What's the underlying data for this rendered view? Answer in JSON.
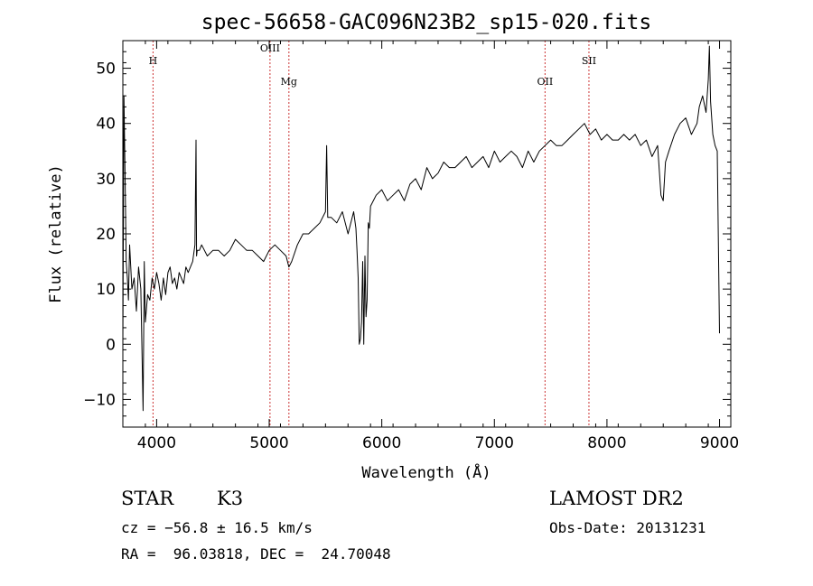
{
  "chart_data": {
    "type": "line",
    "title": "spec-56658-GAC096N23B2_sp15-020.fits",
    "xlabel": "Wavelength (Å)",
    "ylabel": "Flux (relative)",
    "xlim": [
      3700,
      9100
    ],
    "ylim": [
      -15,
      55
    ],
    "xticks": [
      4000,
      5000,
      6000,
      7000,
      8000,
      9000
    ],
    "yticks": [
      -10,
      0,
      10,
      20,
      30,
      40,
      50
    ],
    "grid": false,
    "line_color": "#000000",
    "marker_color": "#cc3333",
    "spectral_lines": [
      {
        "label": "H",
        "x": 3968
      },
      {
        "label": "OIII",
        "x": 5007
      },
      {
        "label": "Mg",
        "x": 5175
      },
      {
        "label": "OII",
        "x": 7450
      },
      {
        "label": "SII",
        "x": 7840
      }
    ],
    "series": [
      {
        "x": [
          3700,
          3710,
          3720,
          3730,
          3740,
          3750,
          3760,
          3780,
          3800,
          3820,
          3840,
          3860,
          3880,
          3890,
          3900,
          3920,
          3940,
          3960,
          3980,
          4000,
          4020,
          4040,
          4060,
          4080,
          4100,
          4120,
          4140,
          4160,
          4180,
          4200,
          4220,
          4240,
          4260,
          4280,
          4300,
          4320,
          4340,
          4350,
          4355,
          4360,
          4380,
          4400,
          4450,
          4500,
          4550,
          4600,
          4650,
          4700,
          4750,
          4800,
          4850,
          4900,
          4950,
          5000,
          5050,
          5100,
          5150,
          5175,
          5200,
          5250,
          5300,
          5350,
          5400,
          5450,
          5500,
          5510,
          5520,
          5550,
          5600,
          5650,
          5700,
          5750,
          5770,
          5780,
          5790,
          5800,
          5810,
          5820,
          5830,
          5840,
          5850,
          5860,
          5870,
          5880,
          5890,
          5900,
          5950,
          6000,
          6050,
          6100,
          6150,
          6200,
          6250,
          6300,
          6350,
          6400,
          6450,
          6500,
          6550,
          6600,
          6650,
          6700,
          6750,
          6800,
          6850,
          6900,
          6950,
          7000,
          7050,
          7100,
          7150,
          7200,
          7250,
          7300,
          7350,
          7400,
          7450,
          7500,
          7550,
          7600,
          7650,
          7700,
          7750,
          7800,
          7850,
          7900,
          7950,
          8000,
          8050,
          8100,
          8150,
          8200,
          8250,
          8300,
          8350,
          8400,
          8450,
          8480,
          8500,
          8520,
          8550,
          8600,
          8650,
          8700,
          8750,
          8800,
          8820,
          8850,
          8880,
          8900,
          8910,
          8920,
          8940,
          8960,
          8980,
          9000
        ],
        "y": [
          0,
          45,
          30,
          15,
          12,
          8,
          18,
          10,
          12,
          6,
          14,
          10,
          -12,
          15,
          4,
          9,
          8,
          12,
          10,
          13,
          11,
          8,
          12,
          9,
          13,
          14,
          11,
          12,
          10,
          13,
          12,
          11,
          14,
          13,
          14,
          15,
          18,
          37,
          16,
          17,
          17,
          18,
          16,
          17,
          17,
          16,
          17,
          19,
          18,
          17,
          17,
          16,
          15,
          17,
          18,
          17,
          16,
          14,
          15,
          18,
          20,
          20,
          21,
          22,
          24,
          36,
          23,
          23,
          22,
          24,
          20,
          24,
          21,
          17,
          12,
          0,
          1,
          4,
          15,
          0,
          16,
          5,
          8,
          22,
          21,
          25,
          27,
          28,
          26,
          27,
          28,
          26,
          29,
          30,
          28,
          32,
          30,
          31,
          33,
          32,
          32,
          33,
          34,
          32,
          33,
          34,
          32,
          35,
          33,
          34,
          35,
          34,
          32,
          35,
          33,
          35,
          36,
          37,
          36,
          36,
          37,
          38,
          39,
          40,
          38,
          39,
          37,
          38,
          37,
          37,
          38,
          37,
          38,
          36,
          37,
          34,
          36,
          27,
          26,
          33,
          35,
          38,
          40,
          41,
          38,
          40,
          43,
          45,
          42,
          48,
          54,
          44,
          38,
          36,
          35,
          2
        ]
      }
    ]
  },
  "info": {
    "object_class": "STAR",
    "subclass": "K3",
    "redshift": "cz = −56.8 ± 16.5 km/s",
    "coords": "RA =  96.03818, DEC =  24.70048",
    "survey": "LAMOST DR2",
    "obs_date": "Obs-Date: 20131231"
  }
}
